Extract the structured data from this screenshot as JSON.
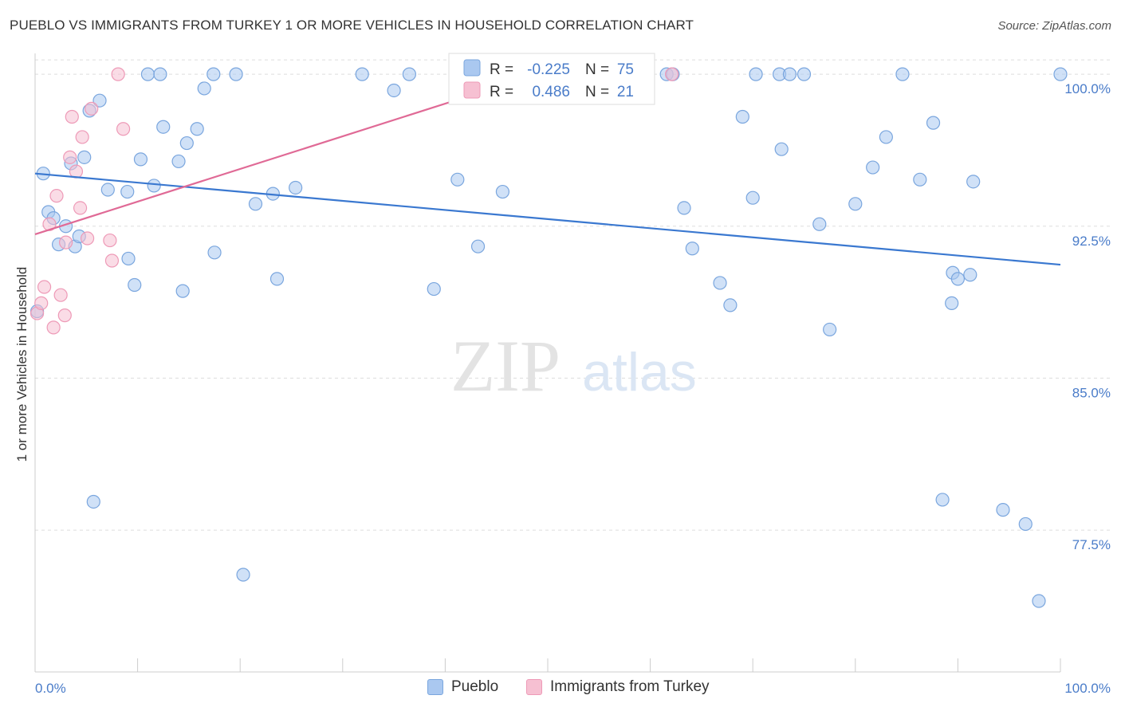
{
  "header": {
    "title": "PUEBLO VS IMMIGRANTS FROM TURKEY 1 OR MORE VEHICLES IN HOUSEHOLD CORRELATION CHART",
    "source": "Source: ZipAtlas.com"
  },
  "watermark": {
    "zip": "ZIP",
    "atlas": "atlas"
  },
  "colors": {
    "pueblo_fill": "#aac8f0",
    "pueblo_stroke": "#7aa6de",
    "pueblo_line": "#3a78d0",
    "turkey_fill": "#f6c0d2",
    "turkey_stroke": "#ee9ab7",
    "turkey_line": "#e06a96",
    "tick_label": "#4a7cc9",
    "grid": "#dddddd"
  },
  "stats_box": {
    "rows": [
      {
        "r_label": "R =",
        "r_value": "-0.225",
        "n_label": "N =",
        "n_value": "75"
      },
      {
        "r_label": "R =",
        "r_value": "0.486",
        "n_label": "N =",
        "n_value": "21"
      }
    ]
  },
  "chart_data": {
    "type": "scatter",
    "title": "PUEBLO VS IMMIGRANTS FROM TURKEY 1 OR MORE VEHICLES IN HOUSEHOLD CORRELATION CHART",
    "xlabel": "",
    "ylabel": "1 or more Vehicles in Household",
    "xlim": [
      0,
      100
    ],
    "ylim": [
      70.5,
      101.5
    ],
    "x_tick_labels": [
      {
        "value": 0,
        "label": "0.0%"
      },
      {
        "value": 100,
        "label": "100.0%"
      }
    ],
    "y_tick_labels": [
      {
        "value": 100,
        "label": "100.0%"
      },
      {
        "value": 92.5,
        "label": "92.5%"
      },
      {
        "value": 85,
        "label": "85.0%"
      },
      {
        "value": 77.5,
        "label": "77.5%"
      }
    ],
    "grid": true,
    "legend_position": "bottom-center",
    "series": [
      {
        "name": "Pueblo",
        "trend": {
          "x": [
            0,
            100
          ],
          "y": [
            95.1,
            90.6
          ]
        },
        "points": [
          {
            "x": 0.2,
            "y": 88.3
          },
          {
            "x": 0.8,
            "y": 95.1
          },
          {
            "x": 1.3,
            "y": 93.2
          },
          {
            "x": 1.8,
            "y": 92.9
          },
          {
            "x": 2.3,
            "y": 91.6
          },
          {
            "x": 3.0,
            "y": 92.5
          },
          {
            "x": 3.5,
            "y": 95.6
          },
          {
            "x": 3.9,
            "y": 91.5
          },
          {
            "x": 4.3,
            "y": 92.0
          },
          {
            "x": 4.8,
            "y": 95.9
          },
          {
            "x": 5.3,
            "y": 98.2
          },
          {
            "x": 5.7,
            "y": 78.9
          },
          {
            "x": 6.3,
            "y": 98.7
          },
          {
            "x": 7.1,
            "y": 94.3
          },
          {
            "x": 9.0,
            "y": 94.2
          },
          {
            "x": 9.1,
            "y": 90.9
          },
          {
            "x": 9.7,
            "y": 89.6
          },
          {
            "x": 10.3,
            "y": 95.8
          },
          {
            "x": 11.0,
            "y": 100.0
          },
          {
            "x": 11.6,
            "y": 94.5
          },
          {
            "x": 12.2,
            "y": 100.0
          },
          {
            "x": 12.5,
            "y": 97.4
          },
          {
            "x": 14.0,
            "y": 95.7
          },
          {
            "x": 14.4,
            "y": 89.3
          },
          {
            "x": 14.8,
            "y": 96.6
          },
          {
            "x": 15.8,
            "y": 97.3
          },
          {
            "x": 16.5,
            "y": 99.3
          },
          {
            "x": 17.4,
            "y": 100.0
          },
          {
            "x": 17.5,
            "y": 91.2
          },
          {
            "x": 19.6,
            "y": 100.0
          },
          {
            "x": 20.3,
            "y": 75.3
          },
          {
            "x": 21.5,
            "y": 93.6
          },
          {
            "x": 23.2,
            "y": 94.1
          },
          {
            "x": 23.6,
            "y": 89.9
          },
          {
            "x": 25.4,
            "y": 94.4
          },
          {
            "x": 31.9,
            "y": 100.0
          },
          {
            "x": 35.0,
            "y": 99.2
          },
          {
            "x": 36.5,
            "y": 100.0
          },
          {
            "x": 38.9,
            "y": 89.4
          },
          {
            "x": 41.2,
            "y": 94.8
          },
          {
            "x": 43.2,
            "y": 91.5
          },
          {
            "x": 45.6,
            "y": 94.2
          },
          {
            "x": 47.4,
            "y": 100.0
          },
          {
            "x": 57.3,
            "y": 100.0
          },
          {
            "x": 61.6,
            "y": 100.0
          },
          {
            "x": 62.2,
            "y": 100.0
          },
          {
            "x": 63.3,
            "y": 93.4
          },
          {
            "x": 64.1,
            "y": 91.4
          },
          {
            "x": 66.8,
            "y": 89.7
          },
          {
            "x": 67.8,
            "y": 88.6
          },
          {
            "x": 69.0,
            "y": 97.9
          },
          {
            "x": 70.0,
            "y": 93.9
          },
          {
            "x": 70.3,
            "y": 100.0
          },
          {
            "x": 72.6,
            "y": 100.0
          },
          {
            "x": 72.8,
            "y": 96.3
          },
          {
            "x": 73.6,
            "y": 100.0
          },
          {
            "x": 75.0,
            "y": 100.0
          },
          {
            "x": 76.5,
            "y": 92.6
          },
          {
            "x": 77.5,
            "y": 87.4
          },
          {
            "x": 80.0,
            "y": 93.6
          },
          {
            "x": 81.7,
            "y": 95.4
          },
          {
            "x": 83.0,
            "y": 96.9
          },
          {
            "x": 84.6,
            "y": 100.0
          },
          {
            "x": 86.3,
            "y": 94.8
          },
          {
            "x": 87.6,
            "y": 97.6
          },
          {
            "x": 88.5,
            "y": 79.0
          },
          {
            "x": 89.4,
            "y": 88.7
          },
          {
            "x": 89.5,
            "y": 90.2
          },
          {
            "x": 90.0,
            "y": 89.9
          },
          {
            "x": 91.2,
            "y": 90.1
          },
          {
            "x": 91.5,
            "y": 94.7
          },
          {
            "x": 94.4,
            "y": 78.5
          },
          {
            "x": 96.6,
            "y": 77.8
          },
          {
            "x": 97.9,
            "y": 74.0
          },
          {
            "x": 100.0,
            "y": 100.0
          }
        ]
      },
      {
        "name": "Immigrants from Turkey",
        "trend": {
          "x": [
            0,
            49
          ],
          "y": [
            92.1,
            100.0
          ]
        },
        "points": [
          {
            "x": 0.2,
            "y": 88.2
          },
          {
            "x": 0.6,
            "y": 88.7
          },
          {
            "x": 0.9,
            "y": 89.5
          },
          {
            "x": 1.4,
            "y": 92.6
          },
          {
            "x": 1.8,
            "y": 87.5
          },
          {
            "x": 2.1,
            "y": 94.0
          },
          {
            "x": 2.5,
            "y": 89.1
          },
          {
            "x": 2.9,
            "y": 88.1
          },
          {
            "x": 3.0,
            "y": 91.7
          },
          {
            "x": 3.4,
            "y": 95.9
          },
          {
            "x": 3.6,
            "y": 97.9
          },
          {
            "x": 4.0,
            "y": 95.2
          },
          {
            "x": 4.4,
            "y": 93.4
          },
          {
            "x": 4.6,
            "y": 96.9
          },
          {
            "x": 5.1,
            "y": 91.9
          },
          {
            "x": 5.5,
            "y": 98.3
          },
          {
            "x": 7.3,
            "y": 91.8
          },
          {
            "x": 7.5,
            "y": 90.8
          },
          {
            "x": 8.1,
            "y": 100.0
          },
          {
            "x": 8.6,
            "y": 97.3
          },
          {
            "x": 62.1,
            "y": 100.0
          }
        ]
      }
    ]
  }
}
